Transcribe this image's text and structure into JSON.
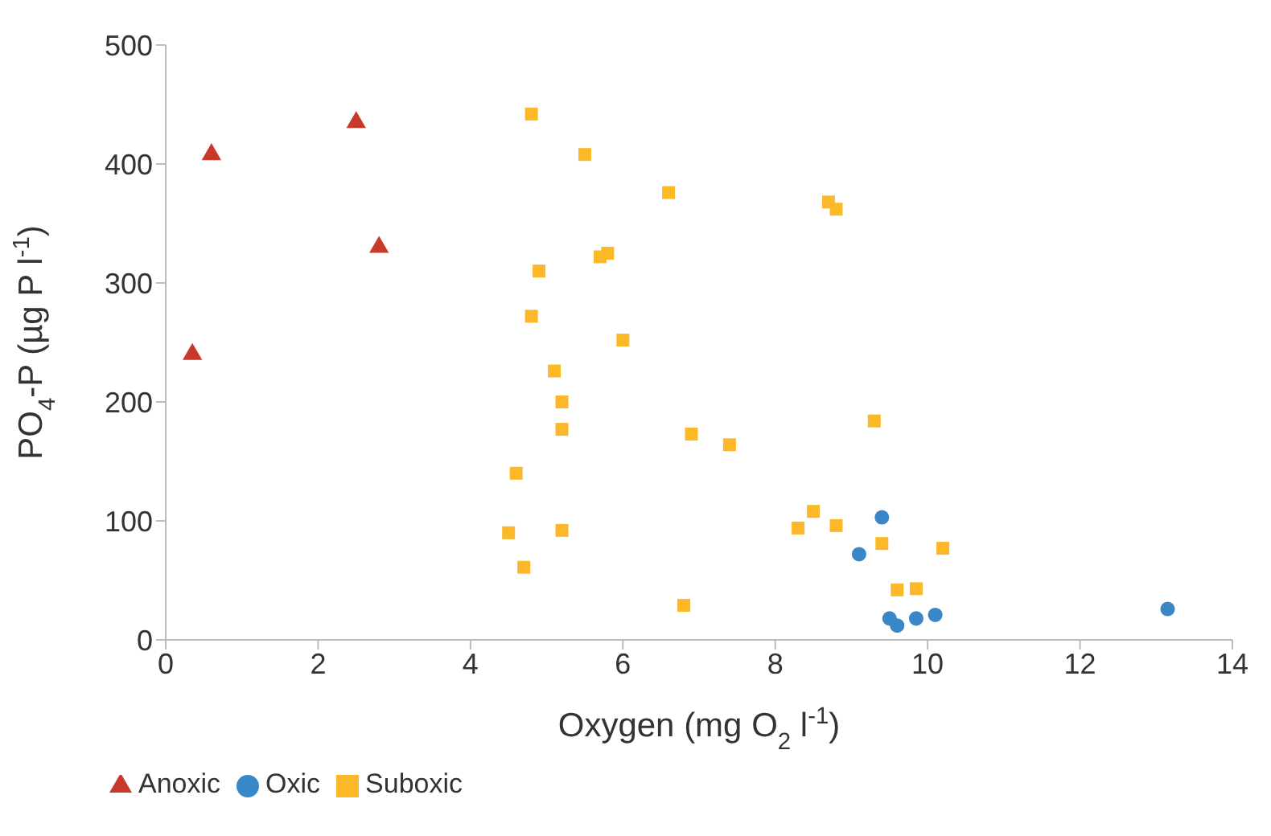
{
  "chart_data": {
    "type": "scatter",
    "xlabel": "Oxygen (mg O$_{2}$ l$^{-1}$)",
    "ylabel": "PO$_{4}$-P (µg P l$^{-1}$)",
    "xlim": [
      0,
      14
    ],
    "xticks": [
      0,
      2,
      4,
      6,
      8,
      10,
      12,
      14
    ],
    "ylim": [
      0,
      500
    ],
    "yticks": [
      0,
      100,
      200,
      300,
      400,
      500
    ],
    "grid": false,
    "legend": "bottom left",
    "series": [
      {
        "name": "Oxic",
        "color": "#3a87c8",
        "marker": "circle",
        "x": [
          9.4,
          9.1,
          9.5,
          9.6,
          9.85,
          10.1,
          13.15
        ],
        "values": [
          103,
          72,
          18,
          12,
          18,
          21,
          26
        ]
      },
      {
        "name": "Suboxic",
        "color": "#fbb829",
        "marker": "square",
        "x": [
          4.8,
          5.5,
          6.6,
          8.7,
          8.8,
          4.9,
          5.7,
          5.8,
          4.8,
          6.0,
          5.1,
          5.2,
          5.2,
          6.9,
          7.4,
          9.3,
          4.6,
          4.5,
          5.2,
          4.7,
          6.8,
          8.3,
          8.5,
          8.8,
          9.4,
          10.2,
          9.6,
          9.85
        ],
        "values": [
          442,
          408,
          376,
          368,
          362,
          310,
          322,
          325,
          272,
          252,
          226,
          200,
          177,
          173,
          164,
          184,
          140,
          90,
          92,
          61,
          29,
          94,
          108,
          96,
          81,
          77,
          42,
          43
        ]
      },
      {
        "name": "Anoxic",
        "color": "#c8392b",
        "marker": "triangle",
        "x": [
          0.35,
          0.6,
          2.5,
          2.8
        ],
        "values": [
          240,
          408,
          435,
          330
        ]
      }
    ]
  }
}
